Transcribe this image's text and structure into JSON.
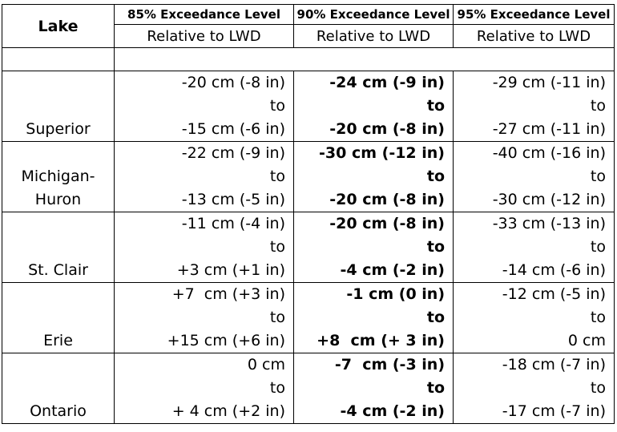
{
  "header": {
    "lake_label": "Lake",
    "levels": [
      "85% Exceedance Level",
      "90% Exceedance Level",
      "95% Exceedance Level"
    ],
    "relative": [
      "Relative to LWD",
      "Relative to LWD",
      "Relative to LWD"
    ]
  },
  "rows": [
    {
      "lake": [
        "",
        "",
        "Superior"
      ],
      "c85": [
        "-20 cm (-8 in)",
        "to",
        "-15 cm (-6 in)"
      ],
      "c90": [
        "-24 cm (-9 in)",
        "to",
        "-20 cm (-8 in)"
      ],
      "c95": [
        "-29 cm (-11 in)",
        "to",
        "-27 cm (-11 in)"
      ]
    },
    {
      "lake": [
        "",
        "Michigan-",
        "Huron"
      ],
      "c85": [
        "-22 cm (-9 in)",
        "to",
        "-13 cm (-5 in)"
      ],
      "c90": [
        "-30 cm (-12 in)",
        "to",
        "-20 cm (-8 in)"
      ],
      "c95": [
        "-40 cm (-16 in)",
        "to",
        "-30 cm (-12 in)"
      ]
    },
    {
      "lake": [
        "",
        "",
        "St. Clair"
      ],
      "c85": [
        "-11 cm (-4 in)",
        "to",
        "+3 cm (+1 in)"
      ],
      "c90": [
        "-20 cm (-8 in)",
        "to",
        "-4 cm (-2 in)"
      ],
      "c95": [
        "-33 cm (-13 in)",
        "to",
        "-14 cm (-6 in)"
      ]
    },
    {
      "lake": [
        "",
        "",
        "Erie"
      ],
      "c85": [
        "+7  cm (+3 in)",
        "to",
        "+15 cm (+6 in)"
      ],
      "c90": [
        "-1 cm (0 in)",
        "to",
        "+8  cm (+ 3 in)"
      ],
      "c95": [
        "-12 cm (-5 in)",
        "to",
        "0 cm"
      ]
    },
    {
      "lake": [
        "",
        "",
        "Ontario"
      ],
      "c85": [
        "0 cm",
        "to",
        "+ 4 cm (+2 in)"
      ],
      "c90": [
        "-7  cm (-3 in)",
        "to",
        "-4 cm (-2 in)"
      ],
      "c95": [
        "-18 cm (-7 in)",
        "to",
        "-17 cm (-7 in)"
      ]
    }
  ]
}
